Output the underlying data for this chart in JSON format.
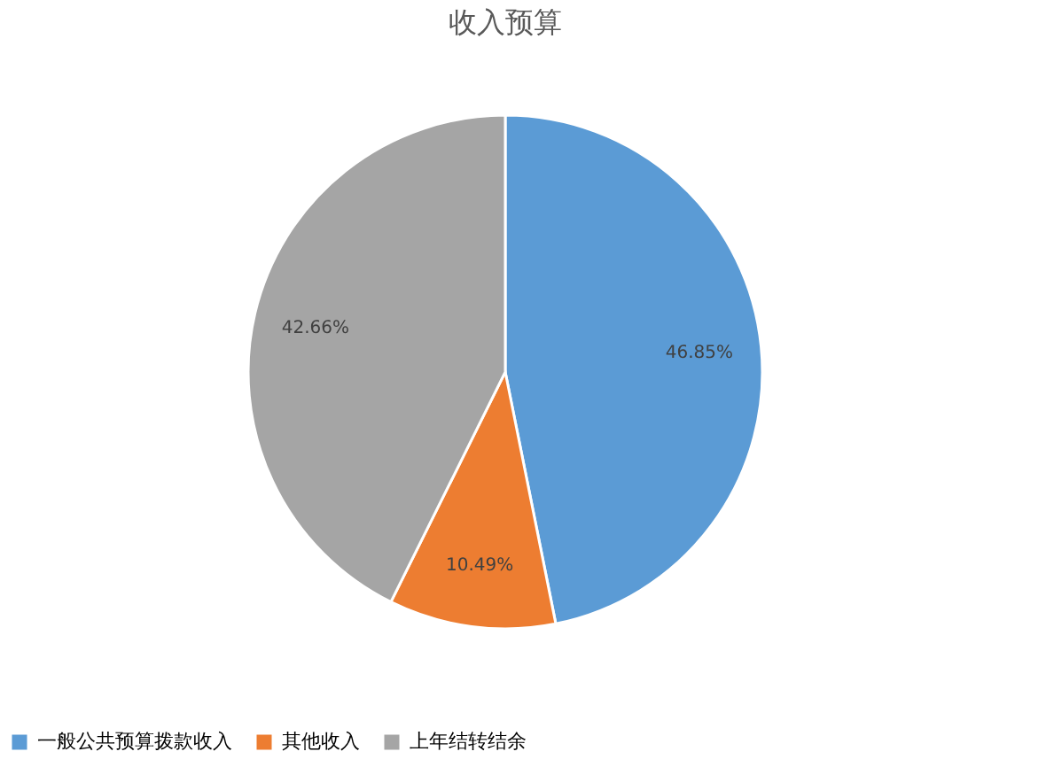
{
  "chart_data": {
    "type": "pie",
    "title": "收入预算",
    "categories": [
      "一般公共预算拨款收入",
      "其他收入",
      "上年结转结余"
    ],
    "values": [
      46.85,
      10.49,
      42.66
    ],
    "value_labels": [
      "46.85%",
      "10.49%",
      "42.66%"
    ],
    "colors": [
      "#5b9bd5",
      "#ed7d31",
      "#a5a5a5"
    ],
    "legend": "bottom"
  }
}
